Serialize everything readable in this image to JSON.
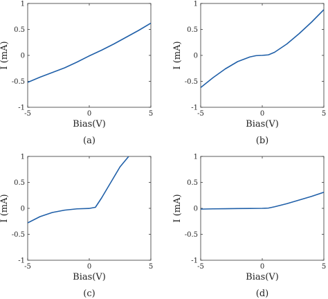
{
  "panels_caption_note": "",
  "chart_data": [
    {
      "type": "line",
      "caption": "(a)",
      "xlabel": "Bias(V)",
      "ylabel": "I (mA)",
      "xlim": [
        -5,
        5
      ],
      "ylim": [
        -1,
        1
      ],
      "xticks": [
        "-5",
        "0",
        "5"
      ],
      "yticks": [
        "1",
        "0.5",
        "0",
        "-0.5",
        "-1"
      ],
      "grid": false,
      "series": [
        {
          "color": "#1f5fa8",
          "x": [
            -5,
            -4,
            -3,
            -2,
            -1,
            0,
            1,
            2,
            3,
            4,
            5
          ],
          "y": [
            -0.52,
            -0.42,
            -0.33,
            -0.24,
            -0.13,
            -0.01,
            0.1,
            0.22,
            0.35,
            0.48,
            0.62
          ]
        }
      ]
    },
    {
      "type": "line",
      "caption": "(b)",
      "xlabel": "Bias(V)",
      "ylabel": "I (mA)",
      "xlim": [
        -5,
        5
      ],
      "ylim": [
        -1,
        1
      ],
      "xticks": [
        "-5",
        "0",
        "5"
      ],
      "yticks": [
        "1",
        "0.5",
        "0",
        "-0.5",
        "-1"
      ],
      "grid": false,
      "series": [
        {
          "color": "#1f5fa8",
          "x": [
            -5,
            -4,
            -3,
            -2,
            -1,
            -0.5,
            0,
            0.5,
            1,
            2,
            3,
            4,
            5
          ],
          "y": [
            -0.62,
            -0.43,
            -0.26,
            -0.12,
            -0.03,
            -0.005,
            0.0,
            0.01,
            0.06,
            0.22,
            0.42,
            0.64,
            0.88
          ]
        }
      ]
    },
    {
      "type": "line",
      "caption": "(c)",
      "xlabel": "Bias(V)",
      "ylabel": "I (mA)",
      "xlim": [
        -5,
        5
      ],
      "ylim": [
        -1,
        1
      ],
      "xticks": [
        "-5",
        "0",
        "5"
      ],
      "yticks": [
        "1",
        "0.5",
        "0",
        "-0.5",
        "-1"
      ],
      "grid": false,
      "series": [
        {
          "color": "#1f5fa8",
          "x": [
            -5,
            -4,
            -3,
            -2,
            -1,
            0,
            0.5,
            1,
            1.5,
            2,
            2.5,
            3.2
          ],
          "y": [
            -0.28,
            -0.16,
            -0.08,
            -0.035,
            -0.01,
            -0.002,
            0.02,
            0.2,
            0.4,
            0.6,
            0.8,
            1.0
          ]
        }
      ]
    },
    {
      "type": "line",
      "caption": "(d)",
      "xlabel": "Bias(V)",
      "ylabel": "I (mA)",
      "xlim": [
        -5,
        5
      ],
      "ylim": [
        -1,
        1
      ],
      "xticks": [
        "-5",
        "0",
        "5"
      ],
      "yticks": [
        "1",
        "0.5",
        "0",
        "-0.5",
        "-1"
      ],
      "grid": false,
      "series": [
        {
          "color": "#1f5fa8",
          "x": [
            -5,
            -4,
            -3,
            -2,
            -1,
            0,
            0.5,
            1,
            2,
            3,
            4,
            5
          ],
          "y": [
            -0.015,
            -0.01,
            -0.007,
            -0.004,
            -0.002,
            0.0,
            0.005,
            0.03,
            0.09,
            0.16,
            0.23,
            0.31
          ]
        }
      ]
    }
  ]
}
